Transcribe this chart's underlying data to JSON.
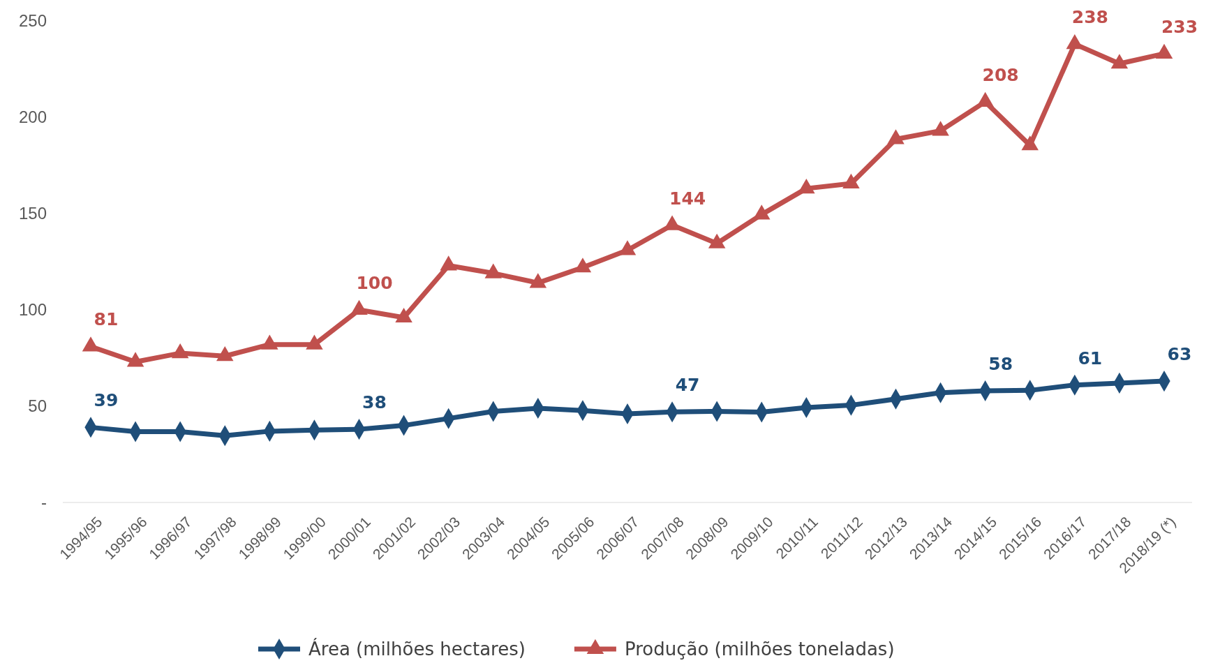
{
  "chart_data": {
    "type": "line",
    "categories": [
      "1994/95",
      "1995/96",
      "1996/97",
      "1997/98",
      "1998/99",
      "1999/00",
      "2000/01",
      "2001/02",
      "2002/03",
      "2003/04",
      "2004/05",
      "2005/06",
      "2006/07",
      "2007/08",
      "2008/09",
      "2009/10",
      "2010/11",
      "2011/12",
      "2012/13",
      "2013/14",
      "2014/15",
      "2015/16",
      "2016/17",
      "2017/18",
      "2018/19 (*)"
    ],
    "ylim": [
      0,
      250
    ],
    "yticks": [
      {
        "value": 0,
        "label": "-"
      },
      50,
      100,
      150,
      200,
      250
    ],
    "grid": false,
    "legend": "bottom",
    "series": [
      {
        "name": "Área (milhões hectares)",
        "color": "#1f4e79",
        "marker": "diamond",
        "values": [
          39,
          36.8,
          36.8,
          34.7,
          37,
          37.6,
          38,
          40,
          43.6,
          47.3,
          48.9,
          47.7,
          46,
          47,
          47.3,
          46.9,
          49.3,
          50.5,
          53.7,
          57,
          58,
          58.2,
          61,
          62,
          63
        ],
        "value_labels": [
          "39",
          null,
          null,
          null,
          null,
          null,
          "38",
          null,
          null,
          null,
          null,
          null,
          null,
          "47",
          null,
          null,
          null,
          null,
          null,
          null,
          "58",
          null,
          "61",
          null,
          "63"
        ]
      },
      {
        "name": "Produção (milhões toneladas)",
        "color": "#c0504d",
        "marker": "triangle",
        "values": [
          81,
          73,
          77.5,
          76,
          82,
          82,
          100,
          96,
          123,
          119,
          114,
          122,
          131,
          144,
          134.5,
          149.5,
          163,
          165.6,
          188.6,
          193,
          208,
          185.4,
          238,
          227.8,
          233
        ],
        "value_labels": [
          "81",
          null,
          null,
          null,
          null,
          null,
          "100",
          null,
          null,
          null,
          null,
          null,
          null,
          "144",
          null,
          null,
          null,
          null,
          null,
          null,
          "208",
          null,
          "238",
          null,
          "233"
        ]
      }
    ]
  }
}
